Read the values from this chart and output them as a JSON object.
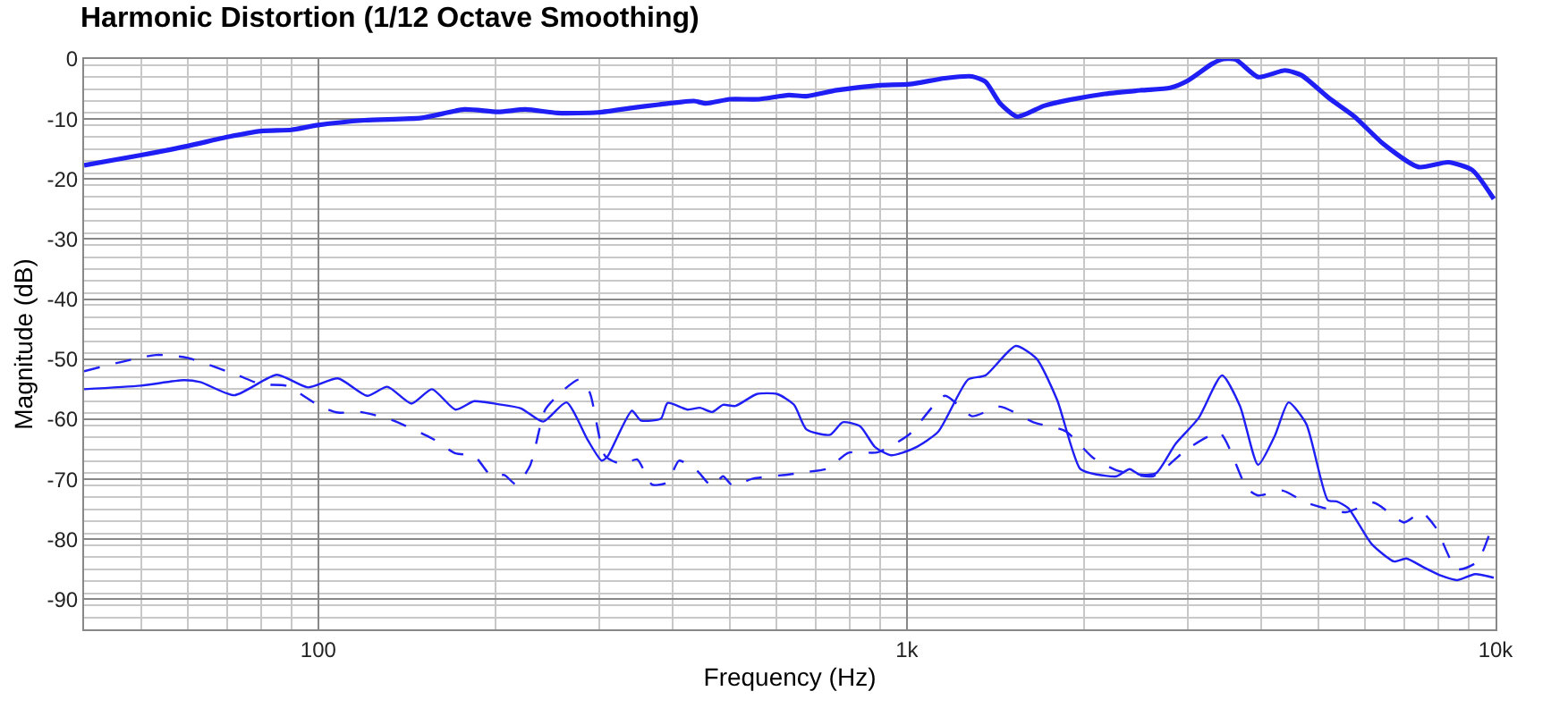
{
  "chart_data": {
    "type": "line",
    "title": "Harmonic Distortion (1/12 Octave Smoothing)",
    "xlabel": "Frequency (Hz)",
    "ylabel": "Magnitude (dB)",
    "log": "x",
    "grid": true,
    "xlim": [
      40,
      10000
    ],
    "ylim": [
      -95,
      0
    ],
    "xticks": [
      100,
      {
        "value": 1000,
        "label": "1k"
      },
      {
        "value": 10000,
        "label": "10k"
      }
    ],
    "yticks": [
      0,
      -10,
      -20,
      -30,
      -40,
      -50,
      -60,
      -70,
      -80,
      -90
    ],
    "series": [
      {
        "color": "#1e1ef5",
        "line_style": "solid",
        "x": [
          40,
          50,
          60,
          70,
          80,
          90,
          100,
          120,
          150,
          177,
          202,
          225,
          255,
          299,
          344,
          379,
          435,
          455,
          500,
          560,
          630,
          675,
          760,
          893,
          1010,
          1160,
          1290,
          1360,
          1440,
          1540,
          1710,
          1890,
          2170,
          2500,
          2800,
          3000,
          3300,
          3450,
          3620,
          3950,
          4390,
          4680,
          5210,
          5760,
          6440,
          7400,
          8310,
          9130,
          9930
        ],
        "values": [
          -17.7,
          -16,
          -14.5,
          -13,
          -12,
          -11.8,
          -11,
          -10.2,
          -9.8,
          -8.4,
          -8.8,
          -8.4,
          -9,
          -8.9,
          -8.1,
          -7.6,
          -7,
          -7.4,
          -6.7,
          -6.7,
          -6,
          -6.2,
          -5.2,
          -4.4,
          -4.2,
          -3.2,
          -2.9,
          -3.8,
          -7.4,
          -9.6,
          -7.8,
          -6.8,
          -5.8,
          -5.2,
          -4.8,
          -3.6,
          -0.8,
          0,
          -0.1,
          -3,
          -1.9,
          -2.7,
          -6.5,
          -9.6,
          -14.1,
          -18,
          -17.2,
          -18.5,
          -23.3
        ]
      },
      {
        "color": "#1e1ef5",
        "line_style": "solid",
        "x": [
          40,
          50,
          59,
          63,
          72,
          85,
          96,
          108,
          121,
          131,
          144,
          156,
          171,
          184,
          202,
          221,
          241,
          264,
          287,
          303,
          310,
          341,
          353,
          382,
          392,
          424,
          445,
          467,
          487,
          511,
          556,
          602,
          643,
          675,
          740,
          778,
          833,
          882,
          940,
          1030,
          1130,
          1270,
          1360,
          1530,
          1660,
          1800,
          1970,
          2100,
          2270,
          2390,
          2480,
          2650,
          2860,
          3130,
          3430,
          3680,
          3950,
          4220,
          4450,
          4770,
          5190,
          5370,
          5620,
          6160,
          6730,
          7050,
          7560,
          8100,
          8600,
          9230,
          9930
        ],
        "values": [
          -55,
          -54.4,
          -53.5,
          -53.8,
          -56,
          -52.6,
          -54.7,
          -53.2,
          -56.1,
          -54.6,
          -57.4,
          -55,
          -58.4,
          -57,
          -57.5,
          -58.2,
          -60.4,
          -57.2,
          -63.5,
          -66.9,
          -66.2,
          -58.6,
          -60.2,
          -59.9,
          -57.3,
          -58.4,
          -58.1,
          -58.8,
          -57.6,
          -57.8,
          -55.8,
          -55.8,
          -57.6,
          -61.7,
          -62.6,
          -60.5,
          -61.2,
          -64.6,
          -66,
          -64.8,
          -62.1,
          -53.4,
          -52.7,
          -47.8,
          -49.9,
          -56.8,
          -68.3,
          -69.2,
          -69.5,
          -68.3,
          -69.2,
          -69,
          -64.1,
          -59.8,
          -52.7,
          -57.8,
          -67.6,
          -62.7,
          -57.2,
          -60.8,
          -73.5,
          -73.7,
          -74.8,
          -80.8,
          -83.7,
          -83.2,
          -84.7,
          -86.1,
          -86.8,
          -85.8,
          -86.4
        ]
      },
      {
        "color": "#1e1ef5",
        "line_style": "dashed",
        "x": [
          40,
          53,
          60,
          73,
          80,
          88,
          101,
          108,
          118,
          133,
          156,
          171,
          184,
          197,
          207,
          217,
          229,
          243,
          260,
          277,
          289,
          307,
          329,
          348,
          369,
          392,
          410,
          439,
          467,
          487,
          505,
          548,
          630,
          675,
          734,
          795,
          893,
          1010,
          1160,
          1290,
          1440,
          1640,
          1860,
          2070,
          2270,
          2620,
          3000,
          3400,
          3780,
          3950,
          4350,
          4770,
          5570,
          6210,
          6990,
          7490,
          7910,
          8600,
          9300,
          9740
        ],
        "values": [
          -52,
          -49.3,
          -49.8,
          -52.7,
          -54.2,
          -54.4,
          -57.9,
          -58.9,
          -58.8,
          -60.1,
          -63.2,
          -65.7,
          -66.1,
          -69.5,
          -69.3,
          -70.9,
          -67.7,
          -58.4,
          -55.3,
          -53.4,
          -55.5,
          -66.1,
          -67.5,
          -66.7,
          -70.9,
          -70.5,
          -66.9,
          -68.5,
          -71.2,
          -69.5,
          -71,
          -69.9,
          -69.2,
          -68.8,
          -68.2,
          -65.6,
          -65.5,
          -62.5,
          -56.1,
          -59.5,
          -57.9,
          -60.5,
          -62,
          -66.4,
          -68.5,
          -69.5,
          -64.9,
          -62.3,
          -71.5,
          -72.7,
          -71.9,
          -73.9,
          -75.5,
          -73.9,
          -77.2,
          -75.5,
          -78,
          -85,
          -83.8,
          -79.4
        ]
      }
    ]
  }
}
